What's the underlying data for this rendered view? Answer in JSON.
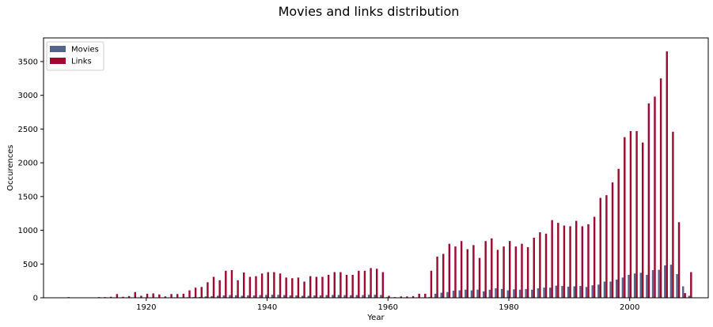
{
  "chart_data": {
    "type": "bar",
    "title": "Movies and links distribution",
    "xlabel": "Year",
    "ylabel": "Occurences",
    "xlim": [
      1903,
      2013
    ],
    "ylim": [
      0,
      3850
    ],
    "xticks": [
      1920,
      1940,
      1960,
      1980,
      2000
    ],
    "yticks": [
      0,
      500,
      1000,
      1500,
      2000,
      2500,
      3000,
      3500
    ],
    "legend_position": "top-left",
    "x": [
      1907,
      1912,
      1913,
      1914,
      1915,
      1916,
      1917,
      1918,
      1919,
      1920,
      1921,
      1922,
      1923,
      1924,
      1925,
      1926,
      1927,
      1928,
      1929,
      1930,
      1931,
      1932,
      1933,
      1934,
      1935,
      1936,
      1937,
      1938,
      1939,
      1940,
      1941,
      1942,
      1943,
      1944,
      1945,
      1946,
      1947,
      1948,
      1949,
      1950,
      1951,
      1952,
      1953,
      1954,
      1955,
      1956,
      1957,
      1958,
      1959,
      1960,
      1961,
      1962,
      1963,
      1964,
      1965,
      1966,
      1967,
      1968,
      1969,
      1970,
      1971,
      1972,
      1973,
      1974,
      1975,
      1976,
      1977,
      1978,
      1979,
      1980,
      1981,
      1982,
      1983,
      1984,
      1985,
      1986,
      1987,
      1988,
      1989,
      1990,
      1991,
      1992,
      1993,
      1994,
      1995,
      1996,
      1997,
      1998,
      1999,
      2000,
      2001,
      2002,
      2003,
      2004,
      2005,
      2006,
      2007,
      2008,
      2009,
      2010
    ],
    "series": [
      {
        "name": "Movies",
        "color": "#56648a",
        "values": [
          1,
          1,
          1,
          2,
          3,
          2,
          3,
          5,
          3,
          4,
          4,
          3,
          3,
          4,
          5,
          6,
          8,
          10,
          12,
          20,
          25,
          30,
          35,
          40,
          38,
          30,
          35,
          35,
          40,
          42,
          45,
          44,
          40,
          35,
          35,
          30,
          30,
          35,
          35,
          40,
          42,
          42,
          40,
          38,
          40,
          40,
          45,
          45,
          42,
          10,
          3,
          2,
          3,
          3,
          5,
          5,
          10,
          60,
          75,
          85,
          105,
          110,
          120,
          110,
          120,
          95,
          120,
          140,
          130,
          110,
          125,
          120,
          130,
          120,
          140,
          150,
          150,
          180,
          175,
          165,
          170,
          175,
          160,
          185,
          195,
          240,
          240,
          270,
          300,
          340,
          360,
          370,
          340,
          410,
          415,
          480,
          490,
          350,
          170,
          30
        ]
      },
      {
        "name": "Links",
        "color": "#9c0c32",
        "values": [
          10,
          10,
          10,
          15,
          55,
          15,
          25,
          85,
          30,
          60,
          65,
          50,
          20,
          55,
          55,
          60,
          110,
          150,
          160,
          230,
          310,
          260,
          400,
          410,
          260,
          375,
          310,
          320,
          360,
          380,
          380,
          360,
          300,
          290,
          300,
          240,
          320,
          310,
          310,
          340,
          380,
          380,
          340,
          340,
          400,
          400,
          440,
          430,
          380,
          30,
          10,
          20,
          20,
          25,
          60,
          60,
          400,
          610,
          650,
          800,
          760,
          840,
          720,
          780,
          590,
          840,
          880,
          710,
          760,
          840,
          760,
          800,
          750,
          890,
          970,
          950,
          1150,
          1110,
          1070,
          1060,
          1140,
          1060,
          1090,
          1200,
          1480,
          1520,
          1710,
          1910,
          2380,
          2470,
          2470,
          2300,
          2880,
          2980,
          3250,
          3650,
          2460,
          1120,
          70,
          380
        ]
      }
    ]
  }
}
